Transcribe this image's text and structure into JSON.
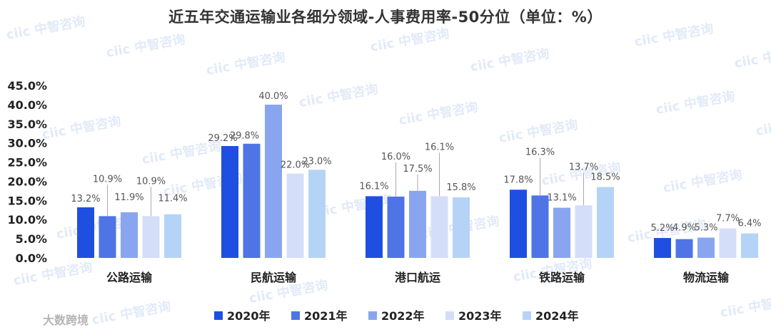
{
  "chart_data": {
    "type": "bar",
    "title": "近五年交通运输业各细分领域-人事费用率-50分位（单位：%）",
    "categories": [
      "公路运输",
      "民航运输",
      "港口航运",
      "铁路运输",
      "物流运输"
    ],
    "y_ticks": [
      "0.0%",
      "5.0%",
      "10.0%",
      "15.0%",
      "20.0%",
      "25.0%",
      "30.0%",
      "35.0%",
      "40.0%",
      "45.0%"
    ],
    "ylim": [
      0,
      45
    ],
    "series": [
      {
        "name": "2020年",
        "color": "#1f4fe0",
        "values": [
          13.2,
          29.2,
          16.1,
          17.8,
          5.2
        ],
        "labels": [
          "13.2%",
          "29.2%",
          "16.1%",
          "17.8%",
          "5.2%"
        ]
      },
      {
        "name": "2021年",
        "color": "#4f74e6",
        "values": [
          10.9,
          29.8,
          16.0,
          16.3,
          4.9
        ],
        "labels": [
          "10.9%",
          "29.8%",
          "16.0%",
          "16.3%",
          "4.9%"
        ]
      },
      {
        "name": "2022年",
        "color": "#8aa5ef",
        "values": [
          11.9,
          40.0,
          17.5,
          13.1,
          5.3
        ],
        "labels": [
          "11.9%",
          "40.0%",
          "17.5%",
          "13.1%",
          "5.3%"
        ]
      },
      {
        "name": "2023年",
        "color": "#d4def9",
        "values": [
          10.9,
          22.0,
          16.1,
          13.7,
          7.7
        ],
        "labels": [
          "10.9%",
          "22.0%",
          "16.1%",
          "13.7%",
          "7.7%"
        ]
      },
      {
        "name": "2024年",
        "color": "#b5d3f6",
        "values": [
          11.4,
          23.0,
          15.8,
          18.5,
          6.4
        ],
        "labels": [
          "11.4%",
          "23.0%",
          "15.8%",
          "18.5%",
          "6.4%"
        ]
      }
    ],
    "legend_position": "bottom",
    "grid": false
  },
  "watermark": "ciic 中智咨询",
  "corner_mark": "大数跨境"
}
